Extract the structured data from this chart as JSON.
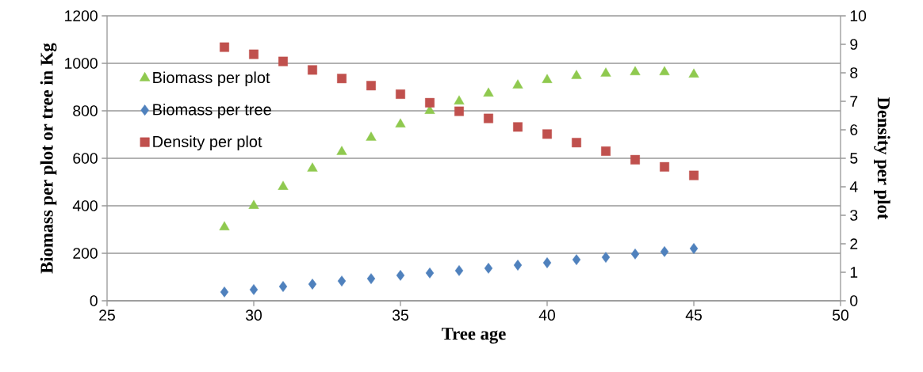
{
  "chart_data": {
    "type": "scatter",
    "xlabel": "Tree age",
    "ylabel": "Biomass per plot or tree in Kg",
    "y2label": "Density per plot",
    "x": [
      29,
      30,
      31,
      32,
      33,
      34,
      35,
      36,
      37,
      38,
      39,
      40,
      41,
      42,
      43,
      44,
      45
    ],
    "series": [
      {
        "name": "Biomass per plot",
        "color": "#8fc94f",
        "marker": "triangle",
        "values": [
          310,
          400,
          480,
          557,
          627,
          687,
          743,
          800,
          840,
          873,
          907,
          930,
          947,
          957,
          963,
          963,
          953
        ]
      },
      {
        "name": "Biomass per tree",
        "color": "#4f81bd",
        "marker": "diamond",
        "values": [
          37,
          47,
          60,
          70,
          83,
          93,
          107,
          117,
          127,
          137,
          150,
          160,
          173,
          183,
          197,
          207,
          220
        ]
      },
      {
        "name": "Density per plot",
        "color": "#c0504d",
        "marker": "square",
        "axis": "y2",
        "values": [
          8.9,
          8.65,
          8.4,
          8.1,
          7.8,
          7.55,
          7.25,
          6.95,
          6.65,
          6.4,
          6.1,
          5.85,
          5.55,
          5.25,
          4.95,
          4.7,
          4.4
        ]
      }
    ],
    "xlim": [
      25,
      50
    ],
    "xticks": [
      25,
      30,
      35,
      40,
      45,
      50
    ],
    "ylim": [
      0,
      1200
    ],
    "yticks": [
      0,
      200,
      400,
      600,
      800,
      1000,
      1200
    ],
    "y2lim": [
      0,
      10
    ],
    "y2ticks": [
      0,
      1,
      2,
      3,
      4,
      5,
      6,
      7,
      8,
      9,
      10
    ],
    "grid": "y",
    "legend": "left"
  }
}
